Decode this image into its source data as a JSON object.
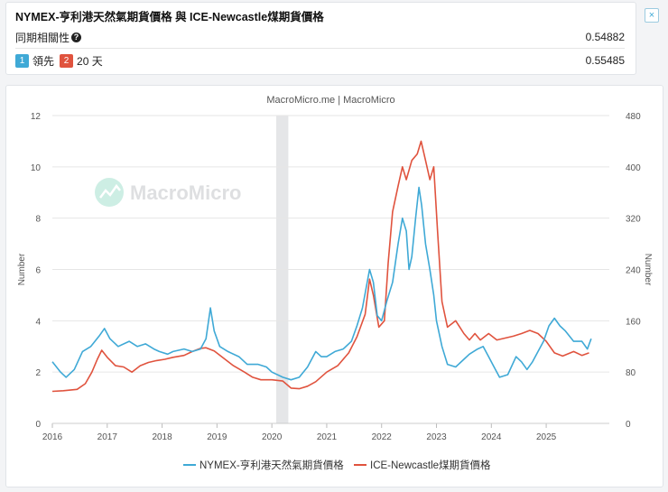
{
  "header": {
    "title": "NYMEX-亨利港天然氣期貨價格 與 ICE-Newcastle煤期貨價格",
    "close_label": "×",
    "corr_label": "同期相關性",
    "corr_help": "?",
    "corr_value": "0.54882",
    "lead_badge_1": "1",
    "lead_text_1": "領先",
    "lead_badge_2": "2",
    "lead_text_2": "20 天",
    "lead_value": "0.55485"
  },
  "colors": {
    "series1": "#3fa9d6",
    "series2": "#e0533e",
    "accent": "#3fa9d6"
  },
  "chart_data": {
    "type": "line",
    "title": "MacroMicro.me | MacroMicro",
    "watermark": "MacroMicro",
    "ylabel_left": "Number",
    "ylabel_right": "Number",
    "x_ticks": [
      "2016",
      "2017",
      "2018",
      "2019",
      "2020",
      "2021",
      "2022",
      "2023",
      "2024",
      "2025"
    ],
    "left_axis": {
      "range": [
        0,
        12
      ],
      "ticks": [
        "0",
        "2",
        "4",
        "6",
        "8",
        "10",
        "12"
      ]
    },
    "right_axis": {
      "range": [
        0,
        480
      ],
      "ticks": [
        "0",
        "80",
        "160",
        "240",
        "320",
        "400",
        "480"
      ]
    },
    "x_range": [
      2016,
      2026.15
    ],
    "shaded_region": [
      2020.08,
      2020.3
    ],
    "series": [
      {
        "name": "NYMEX-亨利港天然氣期貨價格",
        "axis": "left",
        "points": [
          [
            2016.0,
            2.4
          ],
          [
            2016.15,
            2.0
          ],
          [
            2016.25,
            1.8
          ],
          [
            2016.4,
            2.1
          ],
          [
            2016.55,
            2.8
          ],
          [
            2016.7,
            3.0
          ],
          [
            2016.85,
            3.4
          ],
          [
            2016.95,
            3.7
          ],
          [
            2017.05,
            3.3
          ],
          [
            2017.2,
            3.0
          ],
          [
            2017.4,
            3.2
          ],
          [
            2017.55,
            3.0
          ],
          [
            2017.7,
            3.1
          ],
          [
            2017.85,
            2.9
          ],
          [
            2017.95,
            2.8
          ],
          [
            2018.1,
            2.7
          ],
          [
            2018.2,
            2.8
          ],
          [
            2018.4,
            2.9
          ],
          [
            2018.55,
            2.8
          ],
          [
            2018.7,
            2.9
          ],
          [
            2018.8,
            3.3
          ],
          [
            2018.88,
            4.5
          ],
          [
            2018.95,
            3.6
          ],
          [
            2019.05,
            3.0
          ],
          [
            2019.2,
            2.8
          ],
          [
            2019.4,
            2.6
          ],
          [
            2019.55,
            2.3
          ],
          [
            2019.75,
            2.3
          ],
          [
            2019.9,
            2.2
          ],
          [
            2020.0,
            2.0
          ],
          [
            2020.2,
            1.8
          ],
          [
            2020.35,
            1.7
          ],
          [
            2020.5,
            1.8
          ],
          [
            2020.65,
            2.2
          ],
          [
            2020.8,
            2.8
          ],
          [
            2020.9,
            2.6
          ],
          [
            2021.0,
            2.6
          ],
          [
            2021.15,
            2.8
          ],
          [
            2021.3,
            2.9
          ],
          [
            2021.45,
            3.2
          ],
          [
            2021.55,
            3.8
          ],
          [
            2021.65,
            4.5
          ],
          [
            2021.78,
            6.0
          ],
          [
            2021.85,
            5.5
          ],
          [
            2021.92,
            4.2
          ],
          [
            2022.0,
            4.0
          ],
          [
            2022.1,
            4.8
          ],
          [
            2022.2,
            5.5
          ],
          [
            2022.3,
            7.0
          ],
          [
            2022.38,
            8.0
          ],
          [
            2022.45,
            7.5
          ],
          [
            2022.5,
            6.0
          ],
          [
            2022.55,
            6.5
          ],
          [
            2022.62,
            8.0
          ],
          [
            2022.68,
            9.2
          ],
          [
            2022.73,
            8.5
          ],
          [
            2022.8,
            7.0
          ],
          [
            2022.88,
            6.0
          ],
          [
            2022.95,
            5.0
          ],
          [
            2023.0,
            4.0
          ],
          [
            2023.1,
            3.0
          ],
          [
            2023.2,
            2.3
          ],
          [
            2023.35,
            2.2
          ],
          [
            2023.5,
            2.5
          ],
          [
            2023.6,
            2.7
          ],
          [
            2023.75,
            2.9
          ],
          [
            2023.85,
            3.0
          ],
          [
            2023.95,
            2.6
          ],
          [
            2024.05,
            2.2
          ],
          [
            2024.15,
            1.8
          ],
          [
            2024.3,
            1.9
          ],
          [
            2024.45,
            2.6
          ],
          [
            2024.55,
            2.4
          ],
          [
            2024.65,
            2.1
          ],
          [
            2024.75,
            2.4
          ],
          [
            2024.85,
            2.8
          ],
          [
            2024.95,
            3.2
          ],
          [
            2025.05,
            3.8
          ],
          [
            2025.15,
            4.1
          ],
          [
            2025.25,
            3.8
          ],
          [
            2025.35,
            3.6
          ],
          [
            2025.5,
            3.2
          ],
          [
            2025.65,
            3.2
          ],
          [
            2025.75,
            2.9
          ],
          [
            2025.82,
            3.3
          ]
        ]
      },
      {
        "name": "ICE-Newcastle煤期貨價格",
        "axis": "right",
        "points": [
          [
            2016.0,
            50
          ],
          [
            2016.2,
            51
          ],
          [
            2016.45,
            53
          ],
          [
            2016.6,
            62
          ],
          [
            2016.72,
            80
          ],
          [
            2016.82,
            100
          ],
          [
            2016.9,
            114
          ],
          [
            2017.0,
            103
          ],
          [
            2017.15,
            90
          ],
          [
            2017.3,
            88
          ],
          [
            2017.45,
            80
          ],
          [
            2017.6,
            90
          ],
          [
            2017.75,
            95
          ],
          [
            2017.9,
            98
          ],
          [
            2018.05,
            100
          ],
          [
            2018.2,
            103
          ],
          [
            2018.4,
            106
          ],
          [
            2018.55,
            112
          ],
          [
            2018.7,
            117
          ],
          [
            2018.8,
            118
          ],
          [
            2018.95,
            113
          ],
          [
            2019.1,
            103
          ],
          [
            2019.3,
            90
          ],
          [
            2019.5,
            80
          ],
          [
            2019.65,
            72
          ],
          [
            2019.8,
            68
          ],
          [
            2020.0,
            68
          ],
          [
            2020.2,
            66
          ],
          [
            2020.35,
            55
          ],
          [
            2020.5,
            54
          ],
          [
            2020.65,
            58
          ],
          [
            2020.8,
            65
          ],
          [
            2021.0,
            80
          ],
          [
            2021.2,
            90
          ],
          [
            2021.4,
            110
          ],
          [
            2021.55,
            135
          ],
          [
            2021.7,
            170
          ],
          [
            2021.78,
            225
          ],
          [
            2021.85,
            200
          ],
          [
            2021.95,
            150
          ],
          [
            2022.05,
            160
          ],
          [
            2022.12,
            250
          ],
          [
            2022.2,
            330
          ],
          [
            2022.3,
            370
          ],
          [
            2022.38,
            400
          ],
          [
            2022.45,
            380
          ],
          [
            2022.55,
            410
          ],
          [
            2022.65,
            420
          ],
          [
            2022.72,
            440
          ],
          [
            2022.8,
            410
          ],
          [
            2022.88,
            380
          ],
          [
            2022.95,
            400
          ],
          [
            2023.02,
            300
          ],
          [
            2023.1,
            190
          ],
          [
            2023.2,
            150
          ],
          [
            2023.35,
            160
          ],
          [
            2023.5,
            140
          ],
          [
            2023.6,
            130
          ],
          [
            2023.7,
            140
          ],
          [
            2023.8,
            130
          ],
          [
            2023.95,
            140
          ],
          [
            2024.1,
            130
          ],
          [
            2024.25,
            133
          ],
          [
            2024.4,
            136
          ],
          [
            2024.55,
            140
          ],
          [
            2024.7,
            145
          ],
          [
            2024.85,
            140
          ],
          [
            2025.0,
            128
          ],
          [
            2025.15,
            110
          ],
          [
            2025.3,
            105
          ],
          [
            2025.5,
            112
          ],
          [
            2025.65,
            106
          ],
          [
            2025.78,
            110
          ]
        ]
      }
    ]
  }
}
